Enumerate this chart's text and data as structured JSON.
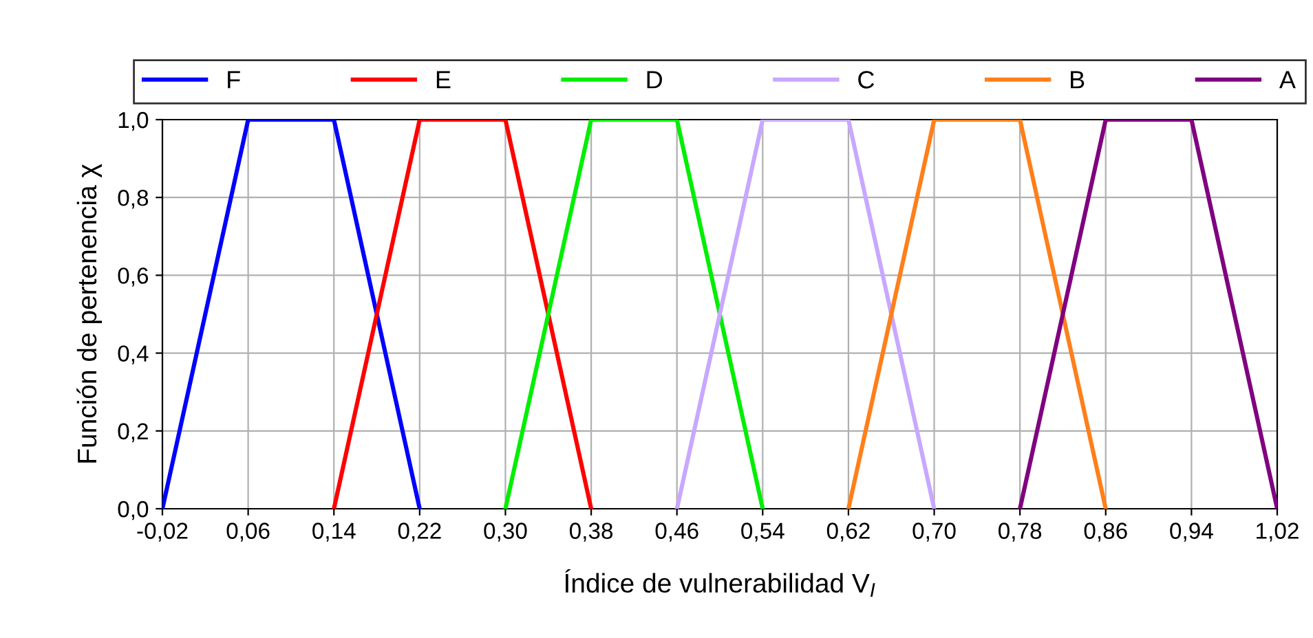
{
  "chart_data": {
    "type": "line",
    "xlabel": "Índice de vulnerabilidad V$_{I}$",
    "ylabel": "Función de pertenencia χ",
    "series": [
      {
        "name": "F",
        "color": "#0000ff",
        "x": [
          -0.02,
          0.06,
          0.14,
          0.22
        ],
        "values": [
          0,
          1,
          1,
          0
        ]
      },
      {
        "name": "E",
        "color": "#ff0000",
        "x": [
          0.14,
          0.22,
          0.3,
          0.38
        ],
        "values": [
          0,
          1,
          1,
          0
        ]
      },
      {
        "name": "D",
        "color": "#00ee00",
        "x": [
          0.3,
          0.38,
          0.46,
          0.54
        ],
        "values": [
          0,
          1,
          1,
          0
        ]
      },
      {
        "name": "C",
        "color": "#c8a8ff",
        "x": [
          0.46,
          0.54,
          0.62,
          0.7
        ],
        "values": [
          0,
          1,
          1,
          0
        ]
      },
      {
        "name": "B",
        "color": "#ff7f1a",
        "x": [
          0.62,
          0.7,
          0.78,
          0.86
        ],
        "values": [
          0,
          1,
          1,
          0
        ]
      },
      {
        "name": "A",
        "color": "#800080",
        "x": [
          0.78,
          0.86,
          0.94,
          1.02
        ],
        "values": [
          0,
          1,
          1,
          0
        ]
      }
    ],
    "xlim": [
      -0.02,
      1.02
    ],
    "ylim": [
      0,
      1.0
    ],
    "xticks": [
      {
        "value": -0.02,
        "label": "-0,02"
      },
      {
        "value": 0.06,
        "label": "0,06"
      },
      {
        "value": 0.14,
        "label": "0,14"
      },
      {
        "value": 0.22,
        "label": "0,22"
      },
      {
        "value": 0.3,
        "label": "0,30"
      },
      {
        "value": 0.38,
        "label": "0,38"
      },
      {
        "value": 0.46,
        "label": "0,46"
      },
      {
        "value": 0.54,
        "label": "0,54"
      },
      {
        "value": 0.62,
        "label": "0,62"
      },
      {
        "value": 0.7,
        "label": "0,70"
      },
      {
        "value": 0.78,
        "label": "0,78"
      },
      {
        "value": 0.86,
        "label": "0,86"
      },
      {
        "value": 0.94,
        "label": "0,94"
      },
      {
        "value": 1.02,
        "label": "1,02"
      }
    ],
    "yticks": [
      {
        "value": 0,
        "label": "0,0"
      },
      {
        "value": 0.2,
        "label": "0,2"
      },
      {
        "value": 0.4,
        "label": "0,4"
      },
      {
        "value": 0.6,
        "label": "0,6"
      },
      {
        "value": 0.8,
        "label": "0,8"
      },
      {
        "value": 1.0,
        "label": "1,0"
      }
    ],
    "grid": true,
    "legend": "top",
    "marker": "none",
    "line_style": "solid"
  }
}
